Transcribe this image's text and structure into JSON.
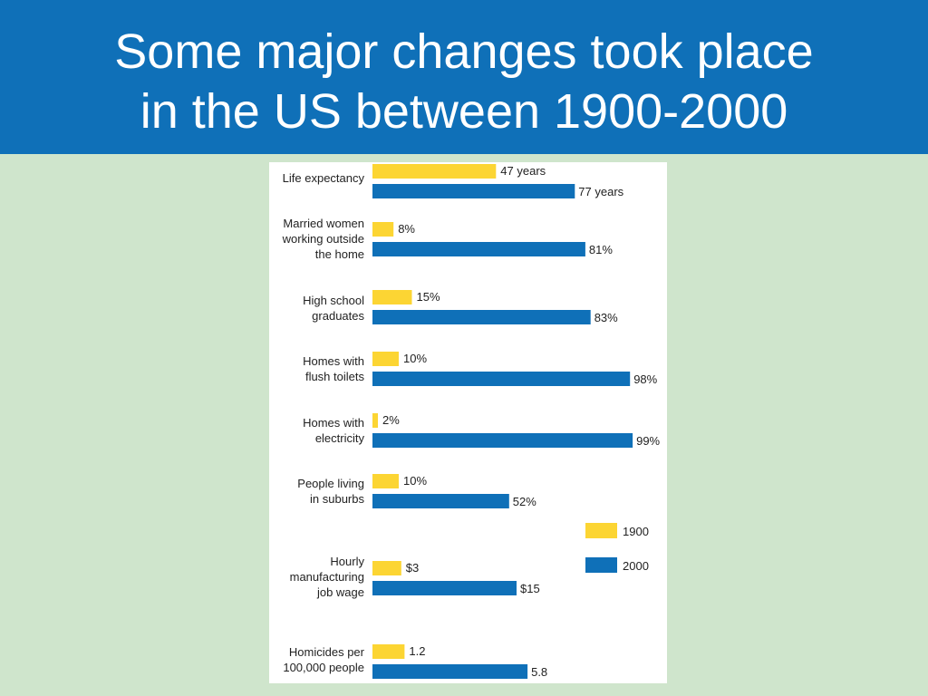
{
  "slide": {
    "title": "Some major changes took place\nin the US between 1900-2000"
  },
  "colors": {
    "header_bg": "#0f70b8",
    "page_bg": "#cfe5cc",
    "series_1900": "#fcd533",
    "series_2000": "#0f70b8"
  },
  "chart_data": {
    "type": "bar",
    "orientation": "horizontal",
    "title": "",
    "xlabel": "",
    "ylabel": "",
    "grid": false,
    "legend_position": "right",
    "categories": [
      [
        "Life expectancy"
      ],
      [
        "Married women",
        "working outside",
        "the home"
      ],
      [
        "High school",
        "graduates"
      ],
      [
        "Homes with",
        "flush toilets"
      ],
      [
        "Homes with",
        "electricity"
      ],
      [
        "People living",
        "in suburbs"
      ],
      [
        "Hourly",
        "manufacturing",
        "job wage"
      ],
      [
        "Homicides per",
        "100,000 people"
      ]
    ],
    "series": [
      {
        "name": "1900",
        "color": "#fcd533",
        "values": [
          47,
          8,
          15,
          10,
          2,
          10,
          3,
          1.2
        ],
        "value_labels": [
          "47 years",
          "8%",
          "15%",
          "10%",
          "2%",
          "10%",
          "$3",
          "1.2"
        ]
      },
      {
        "name": "2000",
        "color": "#0f70b8",
        "values": [
          77,
          81,
          83,
          98,
          99,
          52,
          15,
          5.8
        ],
        "value_labels": [
          "77 years",
          "81%",
          "83%",
          "98%",
          "99%",
          "52%",
          "$15",
          "5.8"
        ]
      }
    ]
  }
}
